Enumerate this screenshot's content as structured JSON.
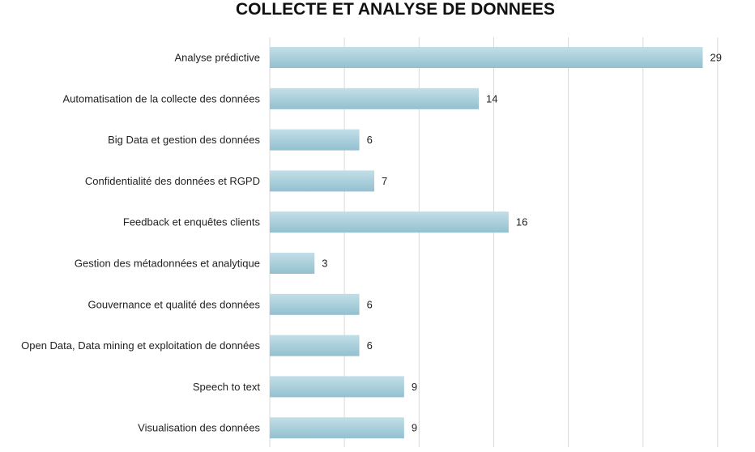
{
  "chart_data": {
    "type": "bar",
    "orientation": "horizontal",
    "title": "COLLECTE ET ANALYSE DE DONNEES",
    "categories": [
      "Analyse prédictive",
      "Automatisation de la collecte des données",
      "Big Data et gestion des données",
      "Confidentialité des données et RGPD",
      "Feedback et enquêtes clients",
      "Gestion des métadonnées et analytique",
      "Gouvernance et qualité des données",
      "Open Data, Data mining et exploitation de données",
      "Speech to text",
      "Visualisation des données"
    ],
    "values": [
      29,
      14,
      6,
      7,
      16,
      3,
      6,
      6,
      9,
      9
    ],
    "xlim": [
      0,
      30
    ],
    "grid": true,
    "data_labels": true,
    "colors": {
      "bar_top": "#c2dfe8",
      "bar_bottom": "#93c0cf",
      "grid": "#d9d9d9"
    }
  }
}
